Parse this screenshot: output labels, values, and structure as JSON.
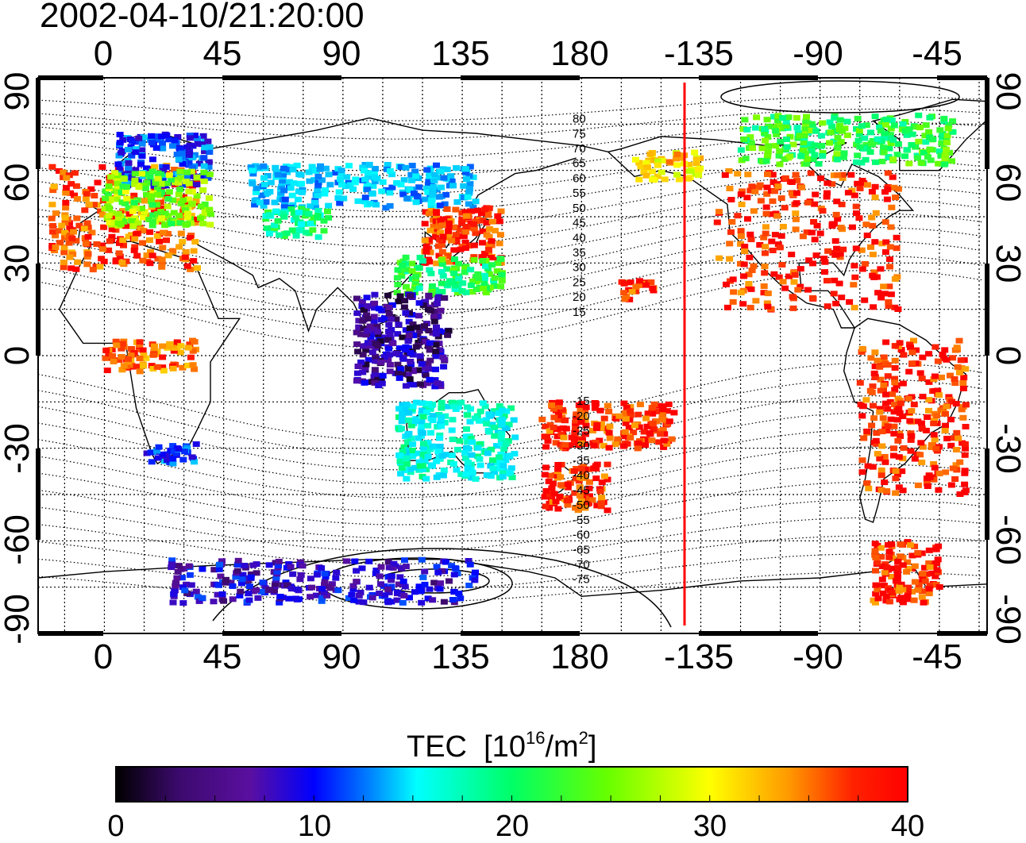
{
  "timestamp": "2002-04-10/21:20:00",
  "top_axis_ticks": [
    "0",
    "45",
    "90",
    "135",
    "180",
    "-135",
    "-90",
    "-45"
  ],
  "bottom_axis_ticks": [
    "0",
    "45",
    "90",
    "135",
    "180",
    "-135",
    "-90",
    "-45"
  ],
  "left_axis_ticks": [
    "90",
    "60",
    "30",
    "0",
    "-30",
    "-60",
    "-90"
  ],
  "right_axis_ticks": [
    "90",
    "60",
    "30",
    "0",
    "-30",
    "-60",
    "-90"
  ],
  "map_extent": {
    "lon_start": -25,
    "lon_end": 333,
    "lat_min": -90,
    "lat_max": 90
  },
  "magnetic_latitude_labels": [
    "80",
    "75",
    "70",
    "65",
    "60",
    "55",
    "50",
    "45",
    "40",
    "35",
    "30",
    "25",
    "20",
    "15",
    "-15",
    "-20",
    "-25",
    "-30",
    "-35",
    "-40",
    "-45",
    "-50",
    "-55",
    "-60",
    "-65",
    "-70",
    "-75"
  ],
  "terminator_longitude": -135,
  "colorbar": {
    "title": "TEC",
    "unit_base": "[10",
    "unit_exp1": "16",
    "unit_mid": "/m",
    "unit_exp2": "2",
    "unit_end": "]",
    "min": 0,
    "max": 40,
    "tick_labels": [
      "0",
      "10",
      "20",
      "30",
      "40"
    ],
    "stops": [
      "#000000",
      "#5a0fa0",
      "#0000ff",
      "#00c8ff",
      "#00ffff",
      "#00ff66",
      "#66ff00",
      "#ffff00",
      "#ff9900",
      "#ff0000"
    ]
  },
  "colors": {
    "terminator": "#ff0000",
    "coast": "#000000",
    "grid": "#000000"
  },
  "tec_regions": [
    {
      "name": "europe",
      "lon": [
        -20,
        35
      ],
      "lat": [
        28,
        62
      ],
      "tec": 38
    },
    {
      "name": "scandinavia",
      "lon": [
        5,
        40
      ],
      "lat": [
        55,
        72
      ],
      "tec": 10
    },
    {
      "name": "central-europe",
      "lon": [
        0,
        40
      ],
      "lat": [
        42,
        60
      ],
      "tec": 27
    },
    {
      "name": "siberia",
      "lon": [
        55,
        140
      ],
      "lat": [
        48,
        62
      ],
      "tec": 14
    },
    {
      "name": "central-asia",
      "lon": [
        60,
        85
      ],
      "lat": [
        38,
        48
      ],
      "tec": 21
    },
    {
      "name": "japan",
      "lon": [
        120,
        150
      ],
      "lat": [
        30,
        48
      ],
      "tec": 39
    },
    {
      "name": "east-china",
      "lon": [
        110,
        150
      ],
      "lat": [
        20,
        32
      ],
      "tec": 23
    },
    {
      "name": "maritime",
      "lon": [
        95,
        130
      ],
      "lat": [
        -10,
        20
      ],
      "tec": 5
    },
    {
      "name": "australia",
      "lon": [
        110,
        155
      ],
      "lat": [
        -40,
        -15
      ],
      "tec": 18
    },
    {
      "name": "south-africa",
      "lon": [
        15,
        35
      ],
      "lat": [
        -35,
        -28
      ],
      "tec": 10
    },
    {
      "name": "new-zealand",
      "lon": [
        165,
        190
      ],
      "lat": [
        -50,
        -35
      ],
      "tec": 39
    },
    {
      "name": "south-pacific",
      "lon": [
        165,
        215
      ],
      "lat": [
        -30,
        -15
      ],
      "tec": 39
    },
    {
      "name": "hawaii",
      "lon": [
        195,
        208
      ],
      "lat": [
        18,
        25
      ],
      "tec": 39
    },
    {
      "name": "alaska",
      "lon": [
        200,
        225
      ],
      "lat": [
        57,
        66
      ],
      "tec": 33
    },
    {
      "name": "north-america",
      "lon": [
        230,
        300
      ],
      "lat": [
        15,
        60
      ],
      "tec": 39
    },
    {
      "name": "canada-arctic",
      "lon": [
        240,
        320
      ],
      "lat": [
        62,
        78
      ],
      "tec": 24
    },
    {
      "name": "south-america",
      "lon": [
        285,
        325
      ],
      "lat": [
        -45,
        5
      ],
      "tec": 39
    },
    {
      "name": "antarctica",
      "lon": [
        25,
        140
      ],
      "lat": [
        -80,
        -66
      ],
      "tec": 7
    },
    {
      "name": "antarctic-peninsula",
      "lon": [
        290,
        315
      ],
      "lat": [
        -80,
        -60
      ],
      "tec": 39
    },
    {
      "name": "west-africa",
      "lon": [
        0,
        35
      ],
      "lat": [
        -5,
        5
      ],
      "tec": 37
    }
  ]
}
